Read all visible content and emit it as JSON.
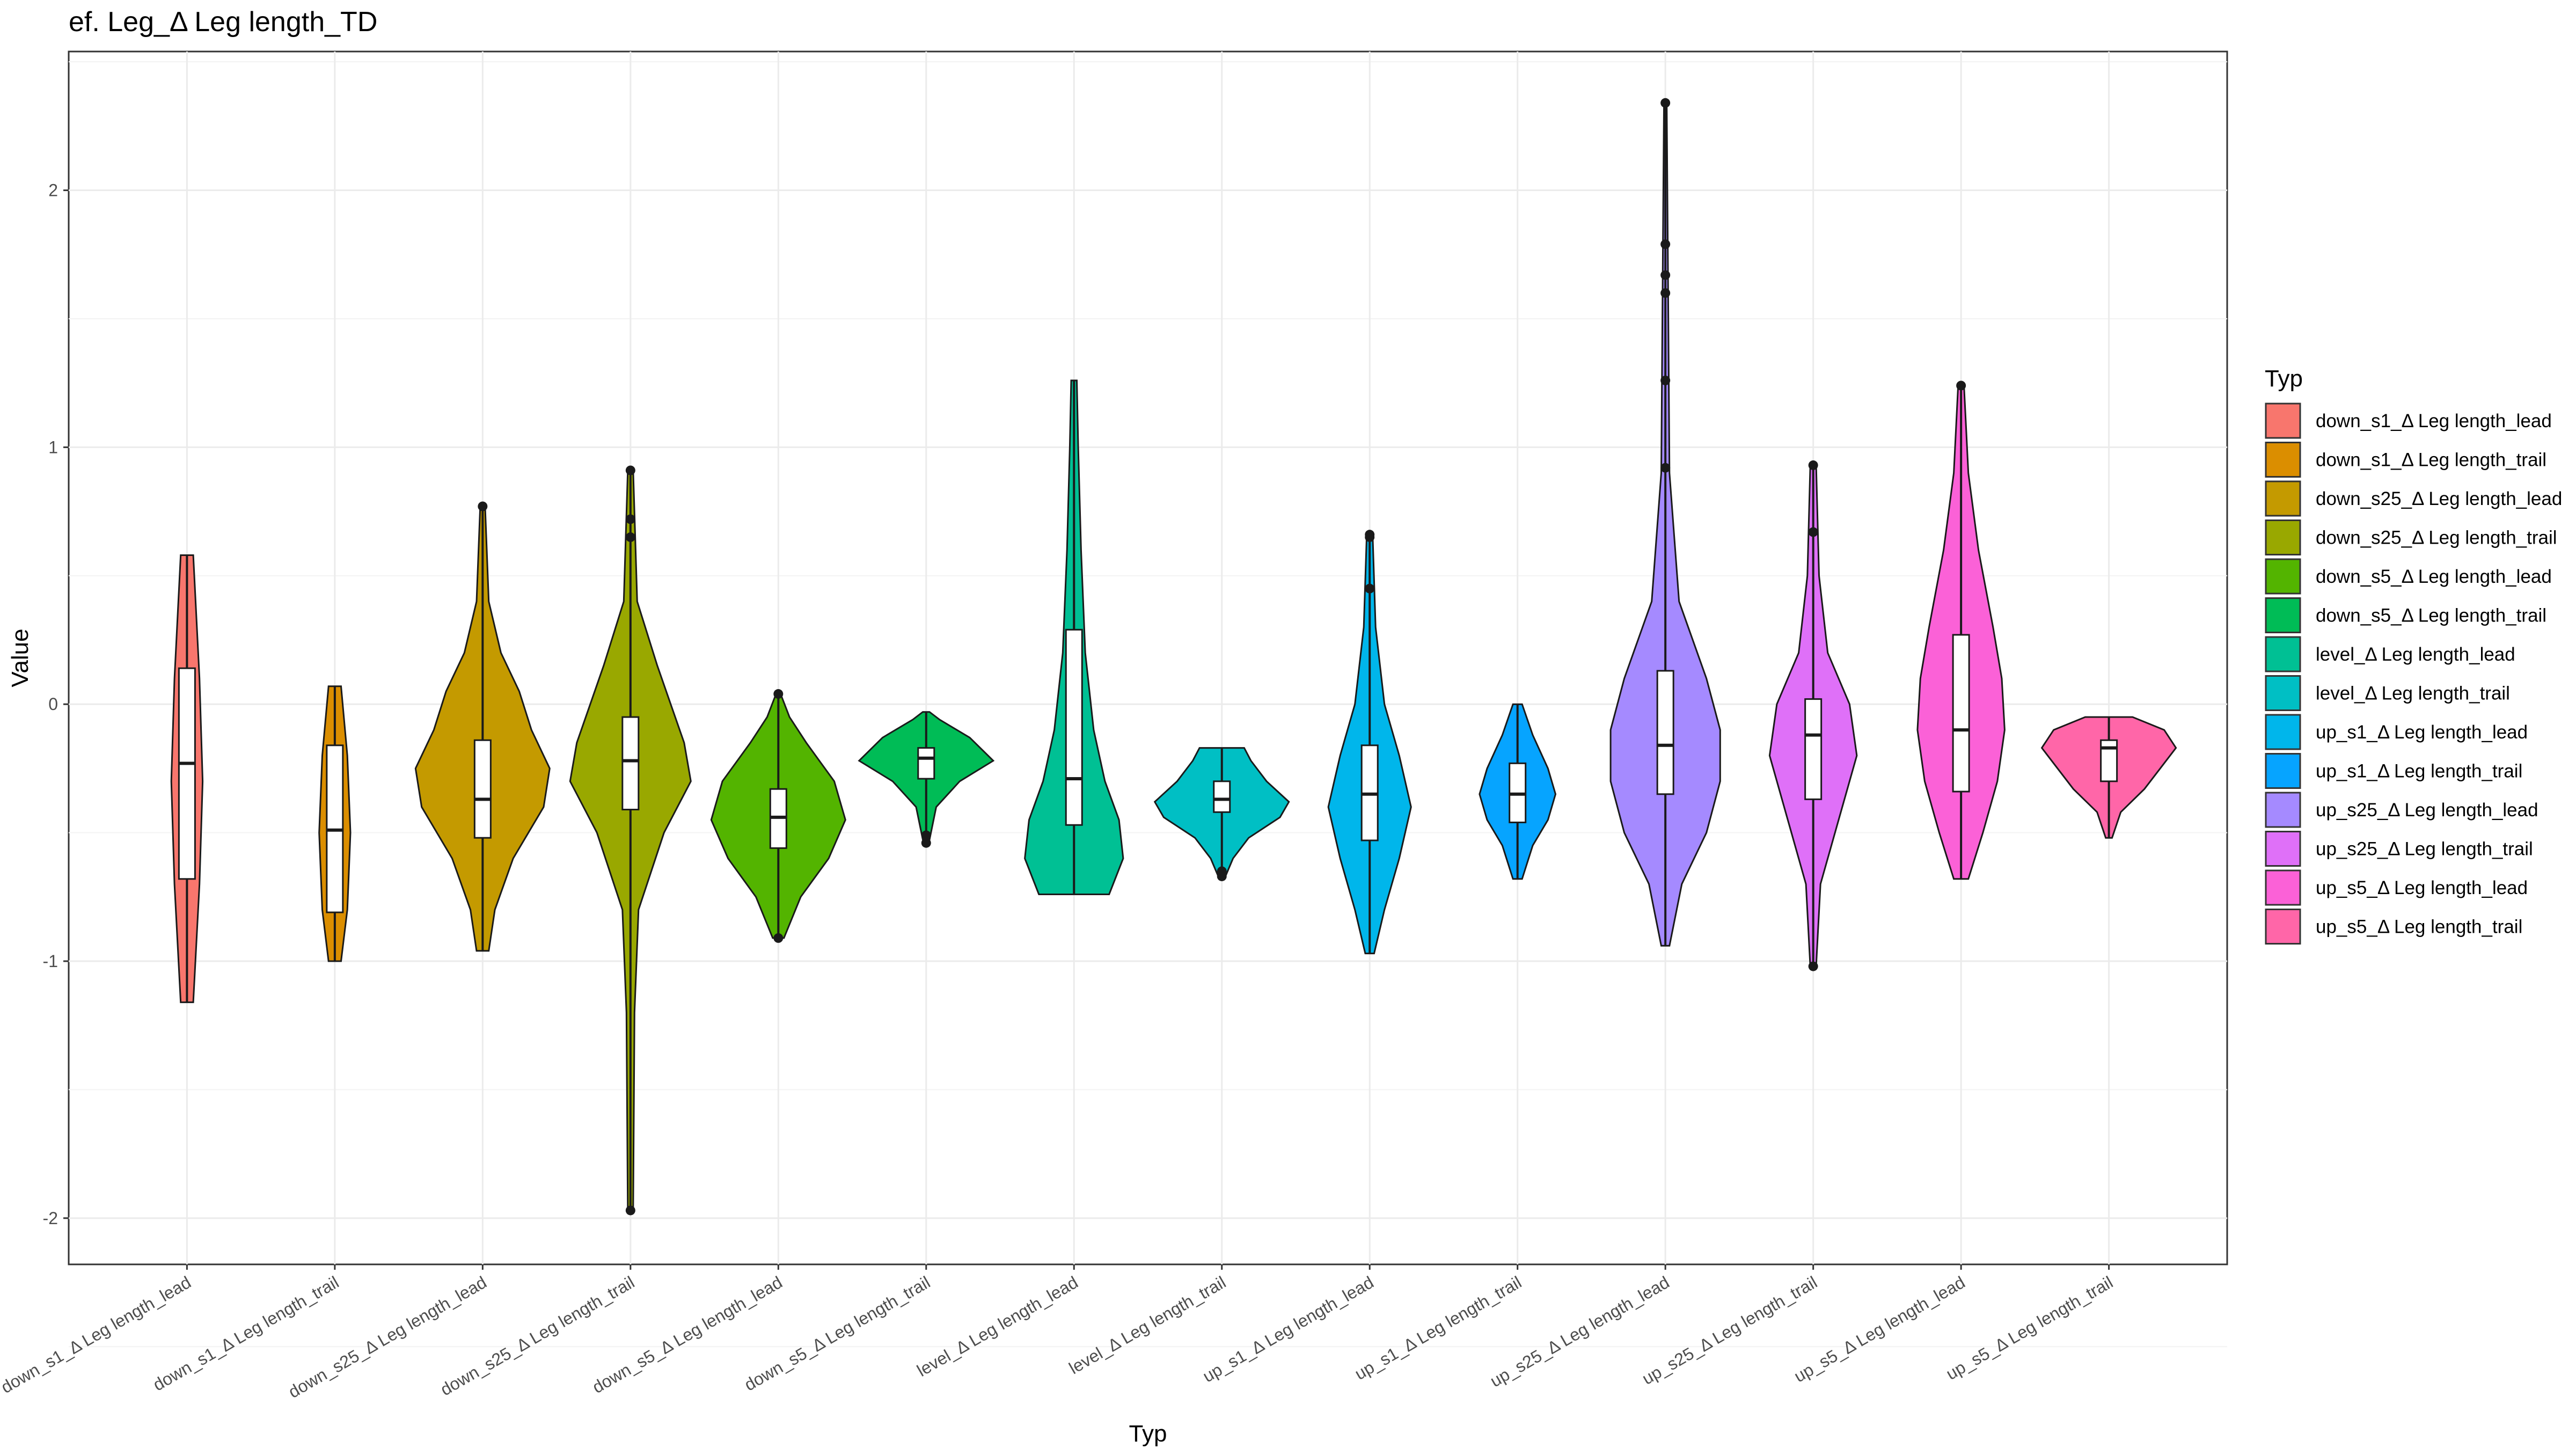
{
  "chart_data": {
    "type": "violin",
    "title": "ef. Leg_Δ Leg length_TD",
    "xlabel": "Typ",
    "ylabel": "Value",
    "ylim": [
      -2.18,
      2.54
    ],
    "yticks": [
      -2,
      -1,
      0,
      1,
      2
    ],
    "grid": true,
    "legend": {
      "title": "Typ",
      "position": "right"
    },
    "categories": [
      "down_s1_Δ Leg length_lead",
      "down_s1_Δ Leg length_trail",
      "down_s25_Δ Leg length_lead",
      "down_s25_Δ Leg length_trail",
      "down_s5_Δ Leg length_lead",
      "down_s5_Δ Leg length_trail",
      "level_Δ Leg length_lead",
      "level_Δ Leg length_trail",
      "up_s1_Δ Leg length_lead",
      "up_s1_Δ Leg length_trail",
      "up_s25_Δ Leg length_lead",
      "up_s25_Δ Leg length_trail",
      "up_s5_Δ Leg length_lead",
      "up_s5_Δ Leg length_trail"
    ],
    "colors": [
      "#F8766D",
      "#DB8E00",
      "#AEA200",
      "#64B200",
      "#00BD5C",
      "#00C1A7",
      "#00BADE",
      "#00A6FF",
      "#B385FF",
      "#EF67EB",
      "#FF63B6",
      "#FF6C91",
      "#E76BF3",
      "#FD61D1"
    ],
    "series": [
      {
        "name": "down_s1_Δ Leg length_lead",
        "color": "#F8766D",
        "min": -1.16,
        "q1": -0.68,
        "median": -0.23,
        "q3": 0.14,
        "max": 0.58,
        "outliers": [],
        "density": [
          [
            -1.16,
            0.02
          ],
          [
            -0.7,
            0.04
          ],
          [
            -0.3,
            0.05
          ],
          [
            0.1,
            0.04
          ],
          [
            0.58,
            0.02
          ]
        ]
      },
      {
        "name": "down_s1_Δ Leg length_trail",
        "color": "#DB8E00",
        "min": -1.0,
        "q1": -0.81,
        "median": -0.49,
        "q3": -0.16,
        "max": 0.07,
        "outliers": [],
        "density": [
          [
            -1.0,
            0.02
          ],
          [
            -0.8,
            0.04
          ],
          [
            -0.5,
            0.05
          ],
          [
            -0.2,
            0.04
          ],
          [
            0.07,
            0.02
          ]
        ]
      },
      {
        "name": "down_s25_Δ Leg length_lead",
        "color": "#C49A00",
        "min": -0.96,
        "q1": -0.52,
        "median": -0.37,
        "q3": -0.14,
        "max": 0.77,
        "outliers": [
          0.77
        ],
        "density": [
          [
            -0.96,
            0.05
          ],
          [
            -0.8,
            0.1
          ],
          [
            -0.6,
            0.25
          ],
          [
            -0.4,
            0.5
          ],
          [
            -0.25,
            0.55
          ],
          [
            -0.1,
            0.4
          ],
          [
            0.05,
            0.3
          ],
          [
            0.2,
            0.15
          ],
          [
            0.4,
            0.05
          ],
          [
            0.77,
            0.02
          ]
        ]
      },
      {
        "name": "down_s25_Δ Leg length_trail",
        "color": "#99A800",
        "min": -1.97,
        "q1": -0.41,
        "median": -0.22,
        "q3": -0.05,
        "max": 0.91,
        "outliers": [
          0.91,
          0.72,
          0.65,
          -1.97
        ],
        "density": [
          [
            -1.97,
            0.02
          ],
          [
            -1.2,
            0.03
          ],
          [
            -0.8,
            0.06
          ],
          [
            -0.5,
            0.25
          ],
          [
            -0.3,
            0.45
          ],
          [
            -0.15,
            0.4
          ],
          [
            0.0,
            0.3
          ],
          [
            0.15,
            0.2
          ],
          [
            0.4,
            0.05
          ],
          [
            0.91,
            0.02
          ]
        ]
      },
      {
        "name": "down_s5_Δ Leg length_lead",
        "color": "#53B400",
        "min": -0.91,
        "q1": -0.56,
        "median": -0.44,
        "q3": -0.33,
        "max": 0.04,
        "outliers": [
          0.04,
          -0.91
        ],
        "density": [
          [
            -0.91,
            0.05
          ],
          [
            -0.75,
            0.2
          ],
          [
            -0.6,
            0.45
          ],
          [
            -0.45,
            0.6
          ],
          [
            -0.3,
            0.5
          ],
          [
            -0.15,
            0.25
          ],
          [
            -0.05,
            0.1
          ],
          [
            0.04,
            0.02
          ]
        ]
      },
      {
        "name": "down_s5_Δ Leg length_trail",
        "color": "#00BC56",
        "min": -0.54,
        "q1": -0.29,
        "median": -0.21,
        "q3": -0.17,
        "max": -0.03,
        "outliers": [
          -0.51,
          -0.54
        ],
        "density": [
          [
            -0.54,
            0.04
          ],
          [
            -0.4,
            0.15
          ],
          [
            -0.3,
            0.5
          ],
          [
            -0.22,
            1.0
          ],
          [
            -0.13,
            0.65
          ],
          [
            -0.06,
            0.2
          ],
          [
            -0.03,
            0.05
          ]
        ]
      },
      {
        "name": "level_Δ Leg length_lead",
        "color": "#00C094",
        "min": -0.74,
        "q1": -0.47,
        "median": -0.29,
        "q3": 0.29,
        "max": 1.26,
        "outliers": [],
        "density": [
          [
            -0.74,
            0.25
          ],
          [
            -0.6,
            0.35
          ],
          [
            -0.45,
            0.32
          ],
          [
            -0.3,
            0.22
          ],
          [
            -0.1,
            0.14
          ],
          [
            0.2,
            0.08
          ],
          [
            0.6,
            0.05
          ],
          [
            1.0,
            0.03
          ],
          [
            1.26,
            0.02
          ]
        ]
      },
      {
        "name": "level_Δ Leg length_trail",
        "color": "#00BFC4",
        "min": -0.67,
        "q1": -0.42,
        "median": -0.37,
        "q3": -0.3,
        "max": -0.17,
        "outliers": [
          -0.65,
          -0.67
        ],
        "density": [
          [
            -0.67,
            0.08
          ],
          [
            -0.6,
            0.25
          ],
          [
            -0.52,
            0.6
          ],
          [
            -0.44,
            1.3
          ],
          [
            -0.38,
            1.5
          ],
          [
            -0.3,
            1.0
          ],
          [
            -0.22,
            0.65
          ],
          [
            -0.17,
            0.5
          ]
        ]
      },
      {
        "name": "up_s1_Δ Leg length_lead",
        "color": "#00B6EB",
        "min": -0.97,
        "q1": -0.53,
        "median": -0.35,
        "q3": -0.16,
        "max": 0.66,
        "outliers": [
          0.66,
          0.65,
          0.45
        ],
        "density": [
          [
            -0.97,
            0.03
          ],
          [
            -0.8,
            0.1
          ],
          [
            -0.6,
            0.2
          ],
          [
            -0.4,
            0.28
          ],
          [
            -0.2,
            0.2
          ],
          [
            0.0,
            0.1
          ],
          [
            0.3,
            0.04
          ],
          [
            0.66,
            0.02
          ]
        ]
      },
      {
        "name": "up_s1_Δ Leg length_trail",
        "color": "#06A4FF",
        "min": -0.68,
        "q1": -0.46,
        "median": -0.35,
        "q3": -0.23,
        "max": 0.0,
        "outliers": [],
        "density": [
          [
            -0.68,
            0.03
          ],
          [
            -0.55,
            0.1
          ],
          [
            -0.45,
            0.2
          ],
          [
            -0.35,
            0.25
          ],
          [
            -0.25,
            0.2
          ],
          [
            -0.12,
            0.1
          ],
          [
            0.0,
            0.03
          ]
        ]
      },
      {
        "name": "up_s25_Δ Leg length_lead",
        "color": "#A58AFF",
        "min": -0.94,
        "q1": -0.35,
        "median": -0.16,
        "q3": 0.13,
        "max": 2.34,
        "outliers": [
          2.34,
          1.79,
          1.67,
          1.6,
          1.26,
          0.92
        ],
        "density": [
          [
            -0.94,
            0.03
          ],
          [
            -0.7,
            0.12
          ],
          [
            -0.5,
            0.3
          ],
          [
            -0.3,
            0.4
          ],
          [
            -0.1,
            0.4
          ],
          [
            0.1,
            0.3
          ],
          [
            0.4,
            0.1
          ],
          [
            0.9,
            0.03
          ],
          [
            2.34,
            0.01
          ]
        ]
      },
      {
        "name": "up_s25_Δ Leg length_trail",
        "color": "#DF70F8",
        "min": -1.02,
        "q1": -0.37,
        "median": -0.12,
        "q3": 0.02,
        "max": 0.93,
        "outliers": [
          0.93,
          0.67,
          -1.02
        ],
        "density": [
          [
            -1.02,
            0.02
          ],
          [
            -0.7,
            0.05
          ],
          [
            -0.4,
            0.2
          ],
          [
            -0.2,
            0.3
          ],
          [
            0.0,
            0.25
          ],
          [
            0.2,
            0.1
          ],
          [
            0.5,
            0.04
          ],
          [
            0.93,
            0.02
          ]
        ]
      },
      {
        "name": "up_s5_Δ Leg length_lead",
        "color": "#FB61D7",
        "min": -0.68,
        "q1": -0.34,
        "median": -0.1,
        "q3": 0.27,
        "max": 1.24,
        "outliers": [
          1.24
        ],
        "density": [
          [
            -0.68,
            0.05
          ],
          [
            -0.5,
            0.15
          ],
          [
            -0.3,
            0.25
          ],
          [
            -0.1,
            0.3
          ],
          [
            0.1,
            0.28
          ],
          [
            0.3,
            0.22
          ],
          [
            0.6,
            0.12
          ],
          [
            0.9,
            0.05
          ],
          [
            1.24,
            0.02
          ]
        ]
      },
      {
        "name": "up_s5_Δ Leg length_trail",
        "color": "#FF66A8",
        "min": -0.52,
        "q1": -0.3,
        "median": -0.17,
        "q3": -0.14,
        "max": -0.05,
        "outliers": [],
        "density": [
          [
            -0.52,
            0.04
          ],
          [
            -0.42,
            0.15
          ],
          [
            -0.33,
            0.45
          ],
          [
            -0.25,
            0.65
          ],
          [
            -0.17,
            0.85
          ],
          [
            -0.1,
            0.7
          ],
          [
            -0.05,
            0.3
          ]
        ]
      }
    ]
  }
}
